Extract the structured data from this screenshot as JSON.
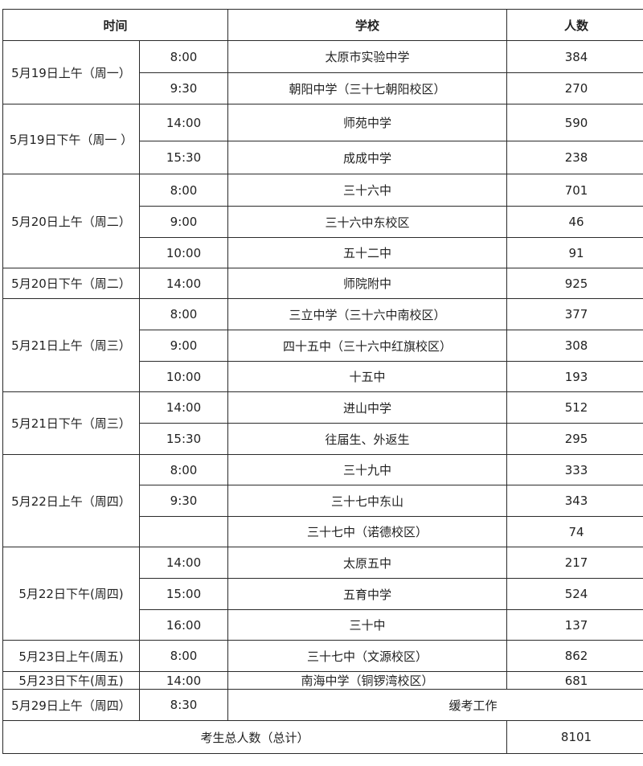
{
  "headers": {
    "time": "时间",
    "school": "学校",
    "count": "人数"
  },
  "groups": [
    {
      "date": "5月19日上午（周一）",
      "rows": [
        {
          "time": "8:00",
          "school": "太原市实验中学",
          "count": "384"
        },
        {
          "time": "9:30",
          "school": "朝阳中学（三十七朝阳校区）",
          "count": "270"
        }
      ]
    },
    {
      "date": "5月19日下午（周一 ）",
      "rows": [
        {
          "time": "14:00",
          "school": "师苑中学",
          "count": "590"
        },
        {
          "time": "15:30",
          "school": "成成中学",
          "count": "238"
        }
      ]
    },
    {
      "date": "5月20日上午（周二）",
      "rows": [
        {
          "time": "8:00",
          "school": "三十六中",
          "count": "701"
        },
        {
          "time": "9:00",
          "school": "三十六中东校区",
          "count": "46"
        },
        {
          "time": "10:00",
          "school": "五十二中",
          "count": "91"
        }
      ]
    },
    {
      "date": "5月20日下午（周二）",
      "rows": [
        {
          "time": "14:00",
          "school": "师院附中",
          "count": "925"
        }
      ]
    },
    {
      "date": "5月21日上午（周三）",
      "rows": [
        {
          "time": "8:00",
          "school": "三立中学（三十六中南校区）",
          "count": "377"
        },
        {
          "time": "9:00",
          "school": "四十五中（三十六中红旗校区）",
          "count": "308"
        },
        {
          "time": "10:00",
          "school": "十五中",
          "count": "193"
        }
      ]
    },
    {
      "date": "5月21日下午（周三）",
      "rows": [
        {
          "time": "14:00",
          "school": "进山中学",
          "count": "512"
        },
        {
          "time": "15:30",
          "school": "往届生、外返生",
          "count": "295"
        }
      ]
    },
    {
      "date": "5月22日上午（周四）",
      "rows": [
        {
          "time": "8:00",
          "school": "三十九中",
          "count": "333"
        },
        {
          "time": "9:30",
          "school": "三十七中东山",
          "count": "343"
        },
        {
          "time": "",
          "school": "三十七中（诺德校区）",
          "count": "74"
        }
      ]
    },
    {
      "date": "5月22日下午(周四)",
      "rows": [
        {
          "time": "14:00",
          "school": "太原五中",
          "count": "217"
        },
        {
          "time": "15:00",
          "school": "五育中学",
          "count": "524"
        },
        {
          "time": "16:00",
          "school": "三十中",
          "count": "137"
        }
      ]
    },
    {
      "date": "5月23日上午(周五)",
      "rows": [
        {
          "time": "8:00",
          "school": "三十七中（文源校区）",
          "count": "862"
        }
      ]
    },
    {
      "date": "5月23日下午(周五)",
      "rows": [
        {
          "time": "14:00",
          "school": "南海中学（铜锣湾校区）",
          "count": "681"
        }
      ]
    }
  ],
  "deferred": {
    "date": "5月29日上午（周四）",
    "time": "8:30",
    "label": "缓考工作"
  },
  "total": {
    "label": "考生总人数（总计）",
    "count": "8101"
  }
}
